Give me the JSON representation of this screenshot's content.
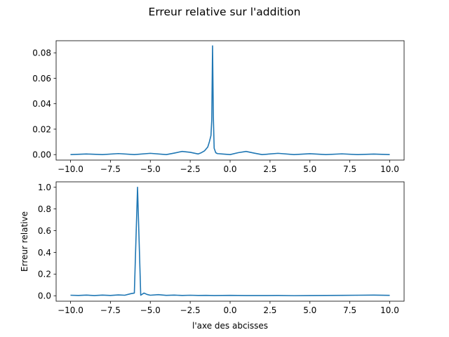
{
  "figure": {
    "suptitle": "Erreur relative sur l'addition"
  },
  "chart_data": [
    {
      "type": "line",
      "title": "",
      "xlabel": "",
      "ylabel": "",
      "xlim": [
        -10.9,
        10.9
      ],
      "ylim": [
        -0.0043,
        0.0895
      ],
      "xticks": [
        -10,
        -7.5,
        -5,
        -2.5,
        0,
        2.5,
        5,
        7.5,
        10
      ],
      "xtick_labels": [
        "−10.0",
        "−7.5",
        "−5.0",
        "−2.5",
        "0.0",
        "2.5",
        "5.0",
        "7.5",
        "10.0"
      ],
      "yticks": [
        0,
        0.02,
        0.04,
        0.06,
        0.08
      ],
      "ytick_labels": [
        "0.00",
        "0.02",
        "0.04",
        "0.06",
        "0.08"
      ],
      "grid": false,
      "color": "#1f77b4",
      "series": [
        {
          "x": [
            -10,
            -9,
            -8,
            -7,
            -6,
            -5,
            -4,
            -3.5,
            -3,
            -2.5,
            -2,
            -1.8,
            -1.6,
            -1.4,
            -1.3,
            -1.2,
            -1.15,
            -1.1,
            -1.05,
            -1.0,
            -0.9,
            -0.8,
            -0.5,
            0,
            0.5,
            1,
            1.5,
            2,
            3,
            4,
            5,
            6,
            7,
            8,
            9,
            10
          ],
          "y": [
            0,
            0.0005,
            0,
            0.0008,
            0,
            0.001,
            0,
            0.0012,
            0.0025,
            0.0018,
            0.0005,
            0.0015,
            0.003,
            0.006,
            0.01,
            0.015,
            0.027,
            0.0855,
            0.03,
            0.005,
            0.0015,
            0.0008,
            0.0005,
            0,
            0.0015,
            0.0025,
            0.0012,
            0,
            0.001,
            0,
            0.0007,
            0,
            0.0006,
            0,
            0.0004,
            0
          ]
        }
      ]
    },
    {
      "type": "line",
      "title": "",
      "xlabel": "l'axe des abcisses",
      "ylabel": "Erreur relative",
      "xlim": [
        -10.9,
        10.9
      ],
      "ylim": [
        -0.05,
        1.05
      ],
      "xticks": [
        -10,
        -7.5,
        -5,
        -2.5,
        0,
        2.5,
        5,
        7.5,
        10
      ],
      "xtick_labels": [
        "−10.0",
        "−7.5",
        "−5.0",
        "−2.5",
        "0.0",
        "2.5",
        "5.0",
        "7.5",
        "10.0"
      ],
      "yticks": [
        0,
        0.2,
        0.4,
        0.6,
        0.8,
        1.0
      ],
      "ytick_labels": [
        "0.0",
        "0.2",
        "0.4",
        "0.6",
        "0.8",
        "1.0"
      ],
      "grid": false,
      "color": "#1f77b4",
      "series": [
        {
          "x": [
            -10,
            -9.5,
            -9,
            -8.5,
            -8,
            -7.5,
            -7,
            -6.6,
            -6.2,
            -6.0,
            -5.8,
            -5.6,
            -5.4,
            -5.2,
            -5.0,
            -4.5,
            -4,
            -3.5,
            -3,
            -2.5,
            -2,
            -1.5,
            -1,
            -0.5,
            0,
            1,
            2,
            3,
            4,
            5,
            6,
            7,
            8,
            9,
            10
          ],
          "y": [
            0.005,
            0.003,
            0.006,
            0.002,
            0.006,
            0.003,
            0.008,
            0.005,
            0.02,
            0.025,
            1.0,
            0.005,
            0.025,
            0.012,
            0.005,
            0.01,
            0.004,
            0.006,
            0.003,
            0.005,
            0.003,
            0.004,
            0.002,
            0.003,
            0.004,
            0.002,
            0.002,
            0.003,
            0.001,
            0.002,
            0.003,
            0.004,
            0.005,
            0.006,
            0.004
          ]
        }
      ]
    }
  ]
}
